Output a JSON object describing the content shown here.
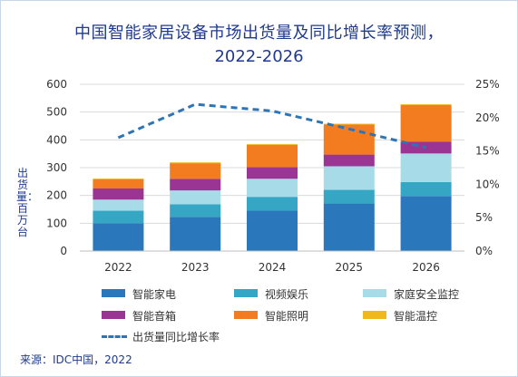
{
  "title_line1": "中国智能家居设备市场出货量及同比增长率预测，",
  "title_line2": "2022-2026",
  "y_axis_label": "出货量：百万台",
  "source": "来源：IDC中国，2022",
  "colors": {
    "智能家电": "#2a77bb",
    "视频娱乐": "#35a6c4",
    "家庭安全监控": "#a8dbe8",
    "智能音箱": "#9b3594",
    "智能照明": "#f47c20",
    "智能温控": "#f0b81c",
    "line": "#2e75b6",
    "title": "#1f3a8f"
  },
  "chart_data": {
    "type": "bar",
    "stacked": true,
    "categories": [
      "2022",
      "2023",
      "2024",
      "2025",
      "2026"
    ],
    "series": [
      {
        "name": "智能家电",
        "values": [
          100,
          123,
          145,
          172,
          198
        ]
      },
      {
        "name": "视频娱乐",
        "values": [
          45,
          45,
          50,
          48,
          50
        ]
      },
      {
        "name": "家庭安全监控",
        "values": [
          40,
          50,
          65,
          85,
          103
        ]
      },
      {
        "name": "智能音箱",
        "values": [
          40,
          42,
          42,
          42,
          42
        ]
      },
      {
        "name": "智能照明",
        "values": [
          33,
          56,
          80,
          108,
          132
        ]
      },
      {
        "name": "智能温控",
        "values": [
          3,
          3,
          3,
          3,
          3
        ]
      }
    ],
    "line_series": {
      "name": "出货量同比增长率",
      "values": [
        17.0,
        22.0,
        21.0,
        18.3,
        15.5
      ],
      "axis": "right"
    },
    "ylim": [
      0,
      600
    ],
    "yticks": [
      "0",
      "100",
      "200",
      "300",
      "400",
      "500",
      "600"
    ],
    "y2lim": [
      0,
      25
    ],
    "y2ticks": [
      "0%",
      "5%",
      "10%",
      "15%",
      "20%",
      "25%"
    ],
    "ylabel": "出货量：百万台",
    "grid": true,
    "legend_position": "bottom"
  }
}
